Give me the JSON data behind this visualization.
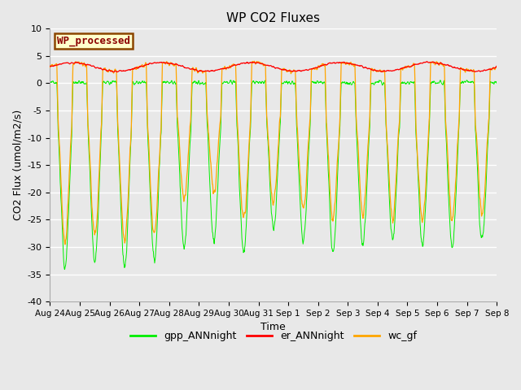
{
  "title": "WP CO2 Fluxes",
  "ylabel": "CO2 Flux (umol/m2/s)",
  "xlabel": "Time",
  "ylim": [
    -40,
    10
  ],
  "annotation": "WP_processed",
  "annotation_facecolor": "#FFFFCC",
  "annotation_edgecolor": "#8B4500",
  "annotation_textcolor": "#8B0000",
  "bg_color": "#E8E8E8",
  "fig_color": "#E8E8E8",
  "gpp_color": "#00EE00",
  "er_color": "#FF0000",
  "wc_color": "#FFA500",
  "n_days": 15,
  "points_per_day": 96,
  "legend_labels": [
    "gpp_ANNnight",
    "er_ANNnight",
    "wc_gf"
  ],
  "xtick_labels": [
    "Aug 24",
    "Aug 25",
    "Aug 26",
    "Aug 27",
    "Aug 28",
    "Aug 29",
    "Aug 30",
    "Aug 31",
    "Sep 1",
    "Sep 2",
    "Sep 3",
    "Sep 4",
    "Sep 5",
    "Sep 6",
    "Sep 7",
    "Sep 8"
  ],
  "ytick_values": [
    -40,
    -35,
    -30,
    -25,
    -20,
    -15,
    -10,
    -5,
    0,
    5,
    10
  ]
}
